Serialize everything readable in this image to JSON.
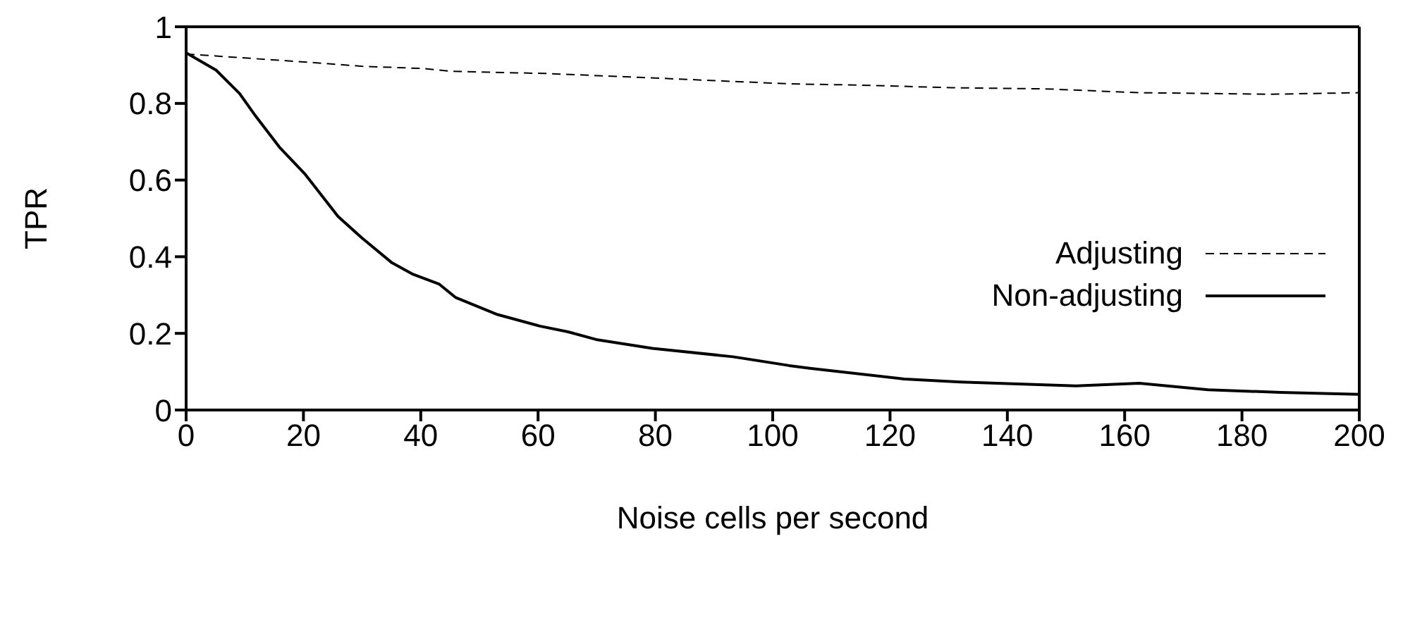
{
  "chart_data": {
    "type": "line",
    "xlabel": "Noise cells per second",
    "ylabel": "TPR",
    "xlim": [
      0,
      200
    ],
    "xticks": [
      0,
      20,
      40,
      60,
      80,
      100,
      120,
      140,
      160,
      180,
      200
    ],
    "ylim": [
      0,
      1
    ],
    "yticks": [
      0,
      0.2,
      0.4,
      0.6,
      0.8,
      1
    ],
    "grid": false,
    "legend": "right",
    "marker": "none",
    "series": [
      {
        "name": "Adjusting",
        "color": "#000000",
        "line_style": "dashed",
        "x": [
          0,
          11.6,
          21.2,
          29.9,
          40.4,
          45.2,
          61.3,
          77.3,
          102.8,
          114.4,
          130.4,
          146.5,
          162.5,
          185,
          200
        ],
        "values": [
          0.929,
          0.917,
          0.907,
          0.897,
          0.891,
          0.884,
          0.878,
          0.868,
          0.851,
          0.848,
          0.841,
          0.838,
          0.828,
          0.824,
          0.828
        ]
      },
      {
        "name": "Non-adjusting",
        "color": "#000000",
        "line_style": "solid",
        "x": [
          0,
          5.1,
          9.1,
          11.9,
          15.9,
          20.3,
          25.9,
          29.9,
          35.1,
          38.7,
          43.1,
          45.9,
          53.1,
          60.3,
          65.1,
          69.9,
          79.5,
          93.2,
          102.8,
          106.3,
          122.4,
          132,
          151.7,
          162.5,
          174.2,
          186.6,
          200
        ],
        "values": [
          0.932,
          0.887,
          0.826,
          0.766,
          0.686,
          0.615,
          0.505,
          0.45,
          0.384,
          0.354,
          0.329,
          0.294,
          0.249,
          0.219,
          0.204,
          0.184,
          0.161,
          0.139,
          0.116,
          0.109,
          0.081,
          0.073,
          0.063,
          0.07,
          0.053,
          0.046,
          0.041
        ]
      }
    ]
  }
}
